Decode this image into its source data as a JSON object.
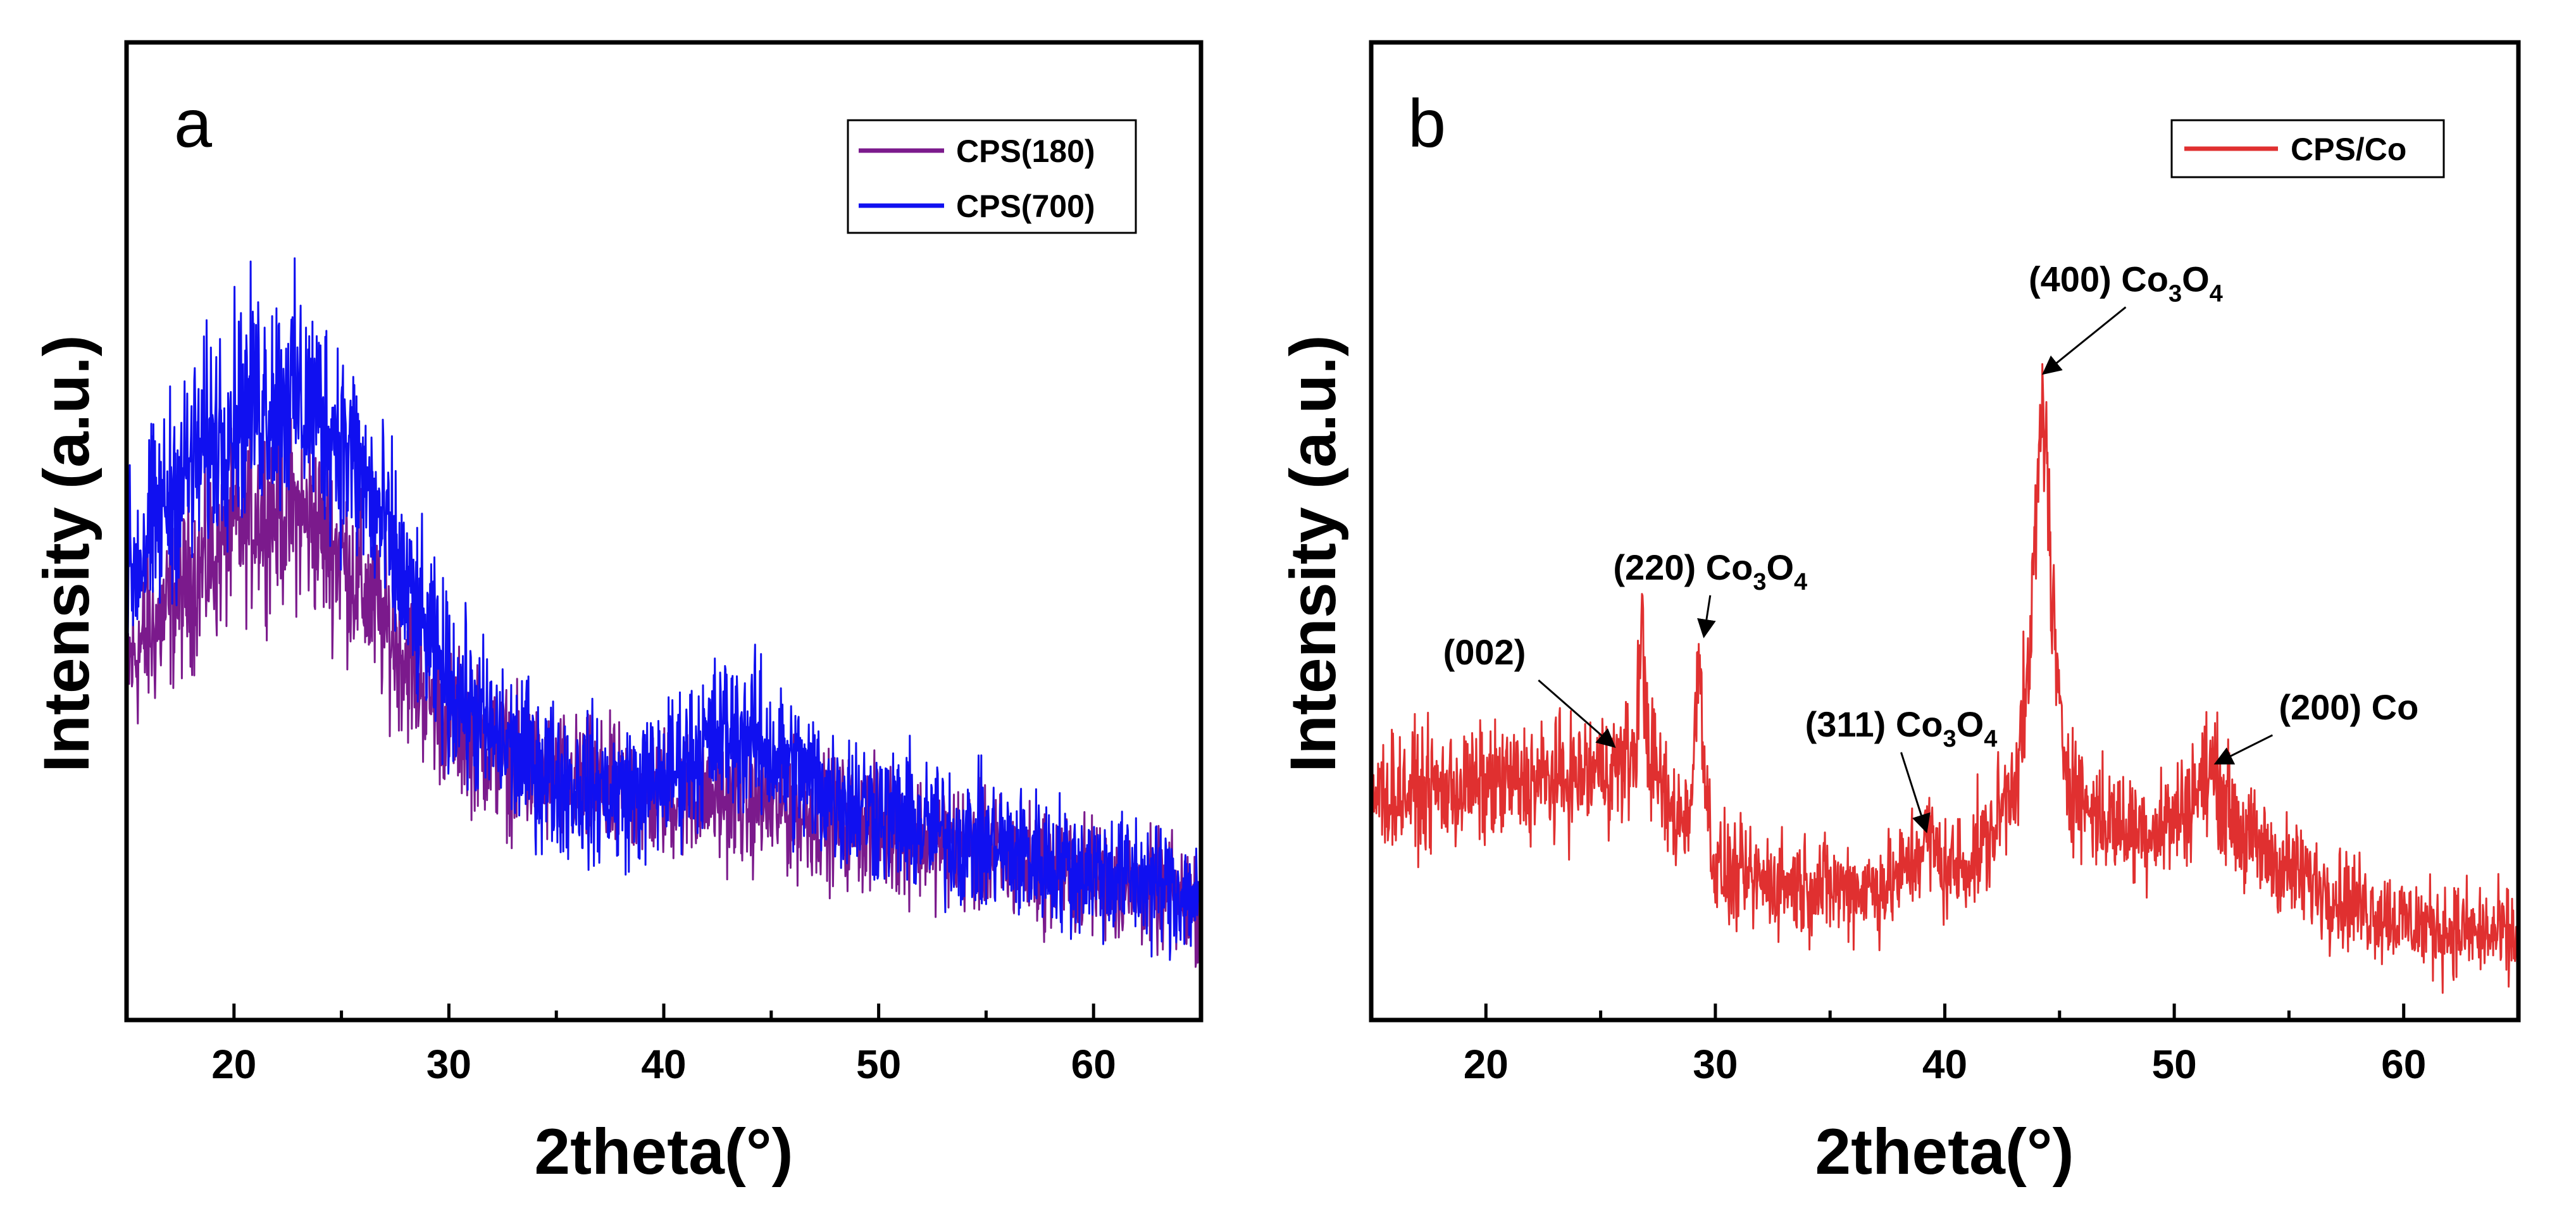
{
  "colors": {
    "cps180": "#7b1a8c",
    "cps700": "#1010f0",
    "cpsco": "#e03030"
  },
  "chart_data": [
    {
      "type": "line",
      "panel_label": "a",
      "xlabel": "2theta(°)",
      "ylabel": "Intensity (a.u.)",
      "xlim": [
        15,
        65
      ],
      "ylim": [
        0,
        1
      ],
      "y_ticks_shown": false,
      "xticks": [
        20,
        30,
        40,
        50,
        60
      ],
      "legend_position": "top-right",
      "series": [
        {
          "name": "CPS(180)",
          "color": "#7b1a8c",
          "noise": 0.045,
          "x": [
            15,
            17,
            19,
            20,
            21,
            22,
            23,
            24,
            25,
            26,
            27,
            28,
            29,
            30,
            31,
            32,
            33,
            34,
            35,
            36,
            37,
            38,
            39,
            40,
            41,
            42,
            43,
            44,
            45,
            46,
            47,
            48,
            50,
            52,
            55,
            58,
            60,
            62,
            65
          ],
          "y": [
            0.4,
            0.47,
            0.53,
            0.56,
            0.58,
            0.585,
            0.58,
            0.56,
            0.53,
            0.49,
            0.45,
            0.41,
            0.37,
            0.34,
            0.32,
            0.3,
            0.285,
            0.275,
            0.265,
            0.26,
            0.255,
            0.25,
            0.25,
            0.25,
            0.25,
            0.25,
            0.245,
            0.24,
            0.235,
            0.23,
            0.225,
            0.22,
            0.21,
            0.2,
            0.18,
            0.16,
            0.15,
            0.14,
            0.12
          ]
        },
        {
          "name": "CPS(700)",
          "color": "#1010f0",
          "noise": 0.05,
          "x": [
            15,
            17,
            19,
            20,
            21,
            22,
            23,
            24,
            25,
            26,
            27,
            28,
            29,
            30,
            31,
            32,
            33,
            34,
            35,
            36,
            37,
            38,
            39,
            40,
            41,
            42,
            43,
            44,
            45,
            46,
            47,
            48,
            50,
            52,
            55,
            58,
            60,
            62,
            65
          ],
          "y": [
            0.5,
            0.6,
            0.67,
            0.7,
            0.715,
            0.72,
            0.715,
            0.7,
            0.67,
            0.62,
            0.56,
            0.49,
            0.43,
            0.38,
            0.35,
            0.32,
            0.3,
            0.285,
            0.27,
            0.26,
            0.255,
            0.25,
            0.255,
            0.27,
            0.29,
            0.31,
            0.325,
            0.32,
            0.3,
            0.28,
            0.265,
            0.25,
            0.23,
            0.21,
            0.19,
            0.17,
            0.16,
            0.15,
            0.13
          ]
        }
      ]
    },
    {
      "type": "line",
      "panel_label": "b",
      "xlabel": "2theta(°)",
      "ylabel": "Intensity (a.u.)",
      "xlim": [
        15,
        65
      ],
      "ylim": [
        0,
        1
      ],
      "y_ticks_shown": false,
      "xticks": [
        20,
        30,
        40,
        50,
        60
      ],
      "legend_position": "top-right",
      "series": [
        {
          "name": "CPS/Co",
          "color": "#e03030",
          "noise": 0.04,
          "x": [
            15,
            18,
            20,
            22,
            24,
            25,
            26,
            26.5,
            26.8,
            27.1,
            27.5,
            28,
            28.5,
            29,
            29.3,
            29.6,
            30,
            31,
            33,
            35,
            37,
            38,
            39.3,
            40,
            41,
            42,
            43,
            43.6,
            44,
            44.3,
            44.6,
            45,
            45.5,
            46,
            47,
            48,
            49,
            50,
            50.8,
            51.6,
            52.3,
            53,
            55,
            58,
            60,
            62,
            65
          ],
          "y": [
            0.25,
            0.255,
            0.26,
            0.265,
            0.27,
            0.28,
            0.285,
            0.3,
            0.44,
            0.3,
            0.27,
            0.23,
            0.22,
            0.25,
            0.43,
            0.25,
            0.16,
            0.15,
            0.145,
            0.14,
            0.14,
            0.15,
            0.2,
            0.16,
            0.17,
            0.2,
            0.27,
            0.36,
            0.58,
            0.74,
            0.52,
            0.33,
            0.27,
            0.24,
            0.22,
            0.21,
            0.21,
            0.22,
            0.25,
            0.28,
            0.24,
            0.2,
            0.16,
            0.12,
            0.1,
            0.09,
            0.08
          ]
        }
      ],
      "annotations": [
        {
          "label": "(002)",
          "sub": "",
          "x": 25.6,
          "y": 0.3
        },
        {
          "label": "(220) Co",
          "sub": "3",
          "tail": "O",
          "sub2": "4",
          "x": 29.5,
          "y": 0.43
        },
        {
          "label": "(311) Co",
          "sub": "3",
          "tail": "O",
          "sub2": "4",
          "x": 39.2,
          "y": 0.2
        },
        {
          "label": "(400) Co",
          "sub": "3",
          "tail": "O",
          "sub2": "4",
          "x": 44.3,
          "y": 0.74
        },
        {
          "label": "(200) Co",
          "sub": "",
          "x": 51.8,
          "y": 0.28
        }
      ]
    }
  ]
}
